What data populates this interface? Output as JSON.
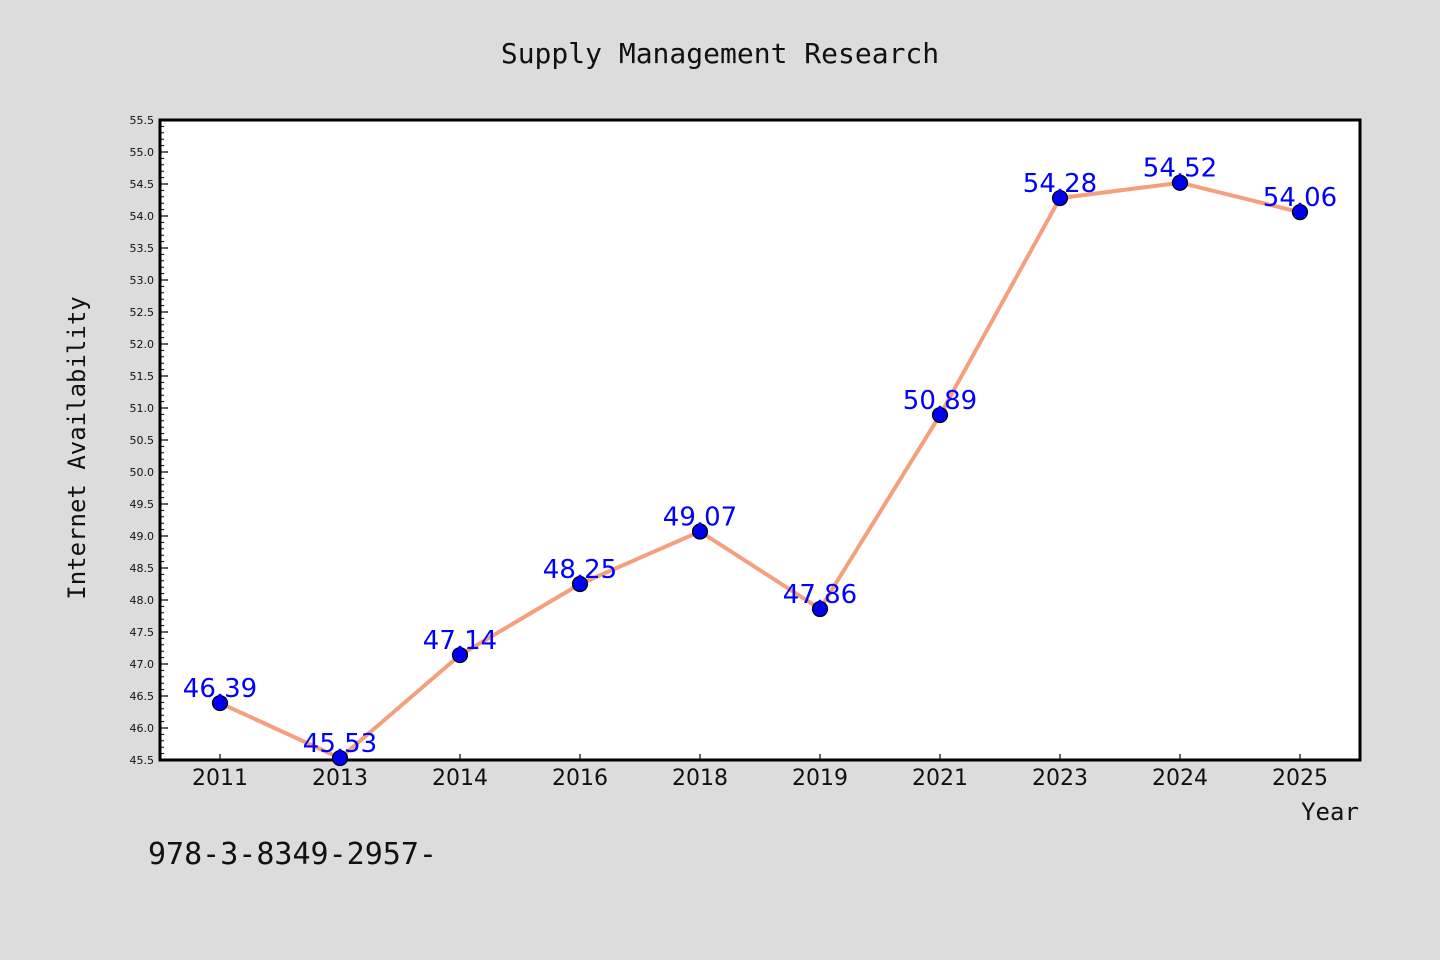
{
  "page": {
    "background": "#dcdcdc",
    "footer_text": "978-3-8349-2957-"
  },
  "chart_data": {
    "type": "line",
    "title": "Supply Management Research",
    "xlabel": "Year",
    "ylabel": "Internet Availability",
    "categories": [
      "2011",
      "2013",
      "2014",
      "2016",
      "2018",
      "2019",
      "2021",
      "2023",
      "2024",
      "2025"
    ],
    "series": [
      {
        "values": [
          46.39,
          45.53,
          47.14,
          48.25,
          49.07,
          47.86,
          50.89,
          54.28,
          54.52,
          54.06
        ],
        "line_color": "#f4a07f",
        "marker_color": "#0000ee",
        "label_color": "#0000ff"
      }
    ],
    "ylim": [
      45.5,
      55.5
    ],
    "yticks": [
      "45.5",
      "46.0",
      "46.5",
      "47.0",
      "47.5",
      "48.0",
      "48.5",
      "49.0",
      "49.5",
      "50.0",
      "50.5",
      "51.0",
      "51.5",
      "52.0",
      "52.5",
      "53.0",
      "53.5",
      "54.0",
      "54.5",
      "55.0",
      "55.5"
    ],
    "grid": false,
    "legend": "none",
    "data_labels": [
      "46.39",
      "45.53",
      "47.14",
      "48.25",
      "49.07",
      "47.86",
      "50.89",
      "54.28",
      "54.52",
      "54.06"
    ]
  }
}
